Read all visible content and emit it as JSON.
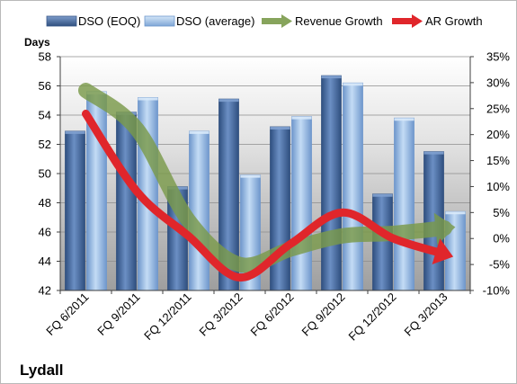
{
  "chart_data": {
    "type": "bar",
    "title": "Lydall",
    "ylabel": "Days",
    "categories": [
      "FQ 6/2011",
      "FQ 9/2011",
      "FQ 12/2011",
      "FQ 3/2012",
      "FQ 6/2012",
      "FQ 9/2012",
      "FQ 12/2012",
      "FQ 3/2013"
    ],
    "ylim": [
      42,
      58
    ],
    "y_ticks": [
      "42",
      "44",
      "46",
      "48",
      "50",
      "52",
      "54",
      "56",
      "58"
    ],
    "y2lim": [
      -10,
      35
    ],
    "y2_ticks": [
      "-10%",
      "-5%",
      "0%",
      "5%",
      "10%",
      "15%",
      "20%",
      "25%",
      "30%",
      "35%"
    ],
    "series": [
      {
        "name": "DSO (EOQ)",
        "type": "bar",
        "axis": "left",
        "color": "#4a6fa5",
        "values": [
          52.9,
          54.2,
          49.1,
          55.1,
          53.2,
          56.7,
          48.6,
          51.5
        ]
      },
      {
        "name": "DSO (average)",
        "type": "bar",
        "axis": "left",
        "color": "#8fb4e3",
        "values": [
          55.6,
          55.2,
          52.9,
          49.9,
          53.9,
          56.2,
          53.8,
          47.4
        ]
      },
      {
        "name": "Revenue Growth",
        "type": "line",
        "axis": "right",
        "color": "#7a9a4a",
        "values": [
          28.5,
          21.0,
          3.5,
          -5.0,
          -2.0,
          0.5,
          1.0,
          2.0
        ]
      },
      {
        "name": "AR Growth",
        "type": "line",
        "axis": "right",
        "color": "#e0262b",
        "values": [
          24.0,
          9.0,
          0.5,
          -7.5,
          -1.0,
          5.0,
          0.0,
          -3.0
        ]
      }
    ],
    "legend_position": "top",
    "grid": true
  }
}
